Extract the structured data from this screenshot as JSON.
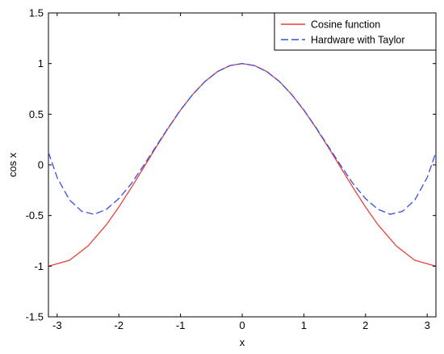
{
  "chart_data": {
    "type": "line",
    "title": "",
    "xlabel": "x",
    "ylabel": "cos x",
    "xlim": [
      -3.14159,
      3.14159
    ],
    "ylim": [
      -1.5,
      1.5
    ],
    "xticks": [
      -3,
      -2,
      -1,
      0,
      1,
      2,
      3
    ],
    "yticks": [
      -1.5,
      -1,
      -0.5,
      0,
      0.5,
      1,
      1.5
    ],
    "xtick_labels": [
      "-3",
      "-2",
      "-1",
      "0",
      "1",
      "2",
      "3"
    ],
    "ytick_labels": [
      "-1.5",
      "-1",
      "-0.5",
      "0",
      "0.5",
      "1",
      "1.5"
    ],
    "grid": false,
    "legend_position": "top-right",
    "series": [
      {
        "name": "Cosine function",
        "color": "#e8413c",
        "line_style": "solid",
        "x": [
          -3.1416,
          -2.8,
          -2.5,
          -2.2,
          -2.0,
          -1.8,
          -1.6,
          -1.4,
          -1.2,
          -1.0,
          -0.8,
          -0.6,
          -0.4,
          -0.2,
          0.0,
          0.2,
          0.4,
          0.6,
          0.8,
          1.0,
          1.2,
          1.4,
          1.6,
          1.8,
          2.0,
          2.2,
          2.5,
          2.8,
          3.1416
        ],
        "y": [
          -1.0,
          -0.942,
          -0.801,
          -0.589,
          -0.416,
          -0.227,
          -0.029,
          0.17,
          0.362,
          0.54,
          0.697,
          0.825,
          0.921,
          0.98,
          1.0,
          0.98,
          0.921,
          0.825,
          0.697,
          0.54,
          0.362,
          0.17,
          -0.029,
          -0.227,
          -0.416,
          -0.589,
          -0.801,
          -0.942,
          -1.0
        ]
      },
      {
        "name": "Hardware with Taylor",
        "color": "#3b4fe0",
        "line_style": "dashed",
        "x": [
          -3.1416,
          -3.0,
          -2.8,
          -2.6,
          -2.4,
          -2.2,
          -2.0,
          -1.8,
          -1.6,
          -1.4,
          -1.2,
          -1.0,
          -0.8,
          -0.6,
          -0.4,
          -0.2,
          0.0,
          0.2,
          0.4,
          0.6,
          0.8,
          1.0,
          1.2,
          1.4,
          1.6,
          1.8,
          2.0,
          2.2,
          2.4,
          2.6,
          2.8,
          3.0,
          3.1416
        ],
        "y": [
          0.124,
          -0.125,
          -0.346,
          -0.459,
          -0.488,
          -0.438,
          -0.333,
          -0.187,
          -0.007,
          0.18,
          0.366,
          0.542,
          0.697,
          0.825,
          0.921,
          0.98,
          1.0,
          0.98,
          0.921,
          0.825,
          0.697,
          0.542,
          0.366,
          0.18,
          -0.007,
          -0.187,
          -0.333,
          -0.438,
          -0.488,
          -0.459,
          -0.346,
          -0.125,
          0.124
        ]
      }
    ]
  }
}
